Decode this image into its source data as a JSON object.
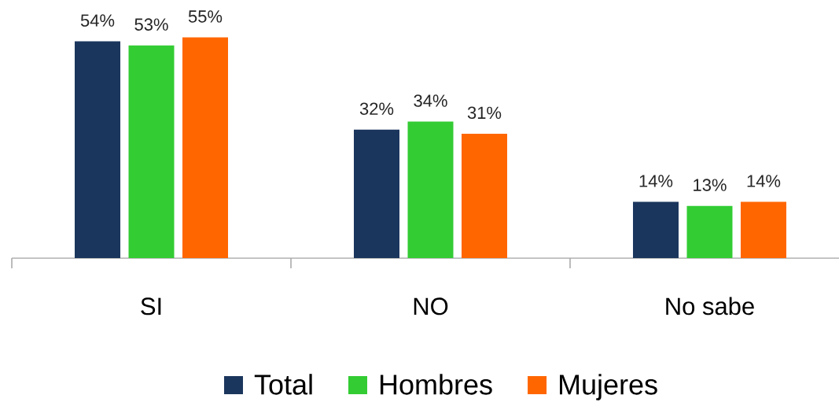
{
  "chart_data": {
    "type": "bar",
    "categories": [
      "SI",
      "NO",
      "No sabe"
    ],
    "series": [
      {
        "name": "Total",
        "color": "#1b365d",
        "values": [
          54,
          32,
          14
        ],
        "value_labels": [
          "54%",
          "32%",
          "14%"
        ]
      },
      {
        "name": "Hombres",
        "color": "#33cc33",
        "values": [
          53,
          34,
          13
        ],
        "value_labels": [
          "53%",
          "34%",
          "13%"
        ]
      },
      {
        "name": "Mujeres",
        "color": "#ff6600",
        "values": [
          55,
          31,
          14
        ],
        "value_labels": [
          "55%",
          "31%",
          "14%"
        ]
      }
    ],
    "legend": "bottom"
  }
}
